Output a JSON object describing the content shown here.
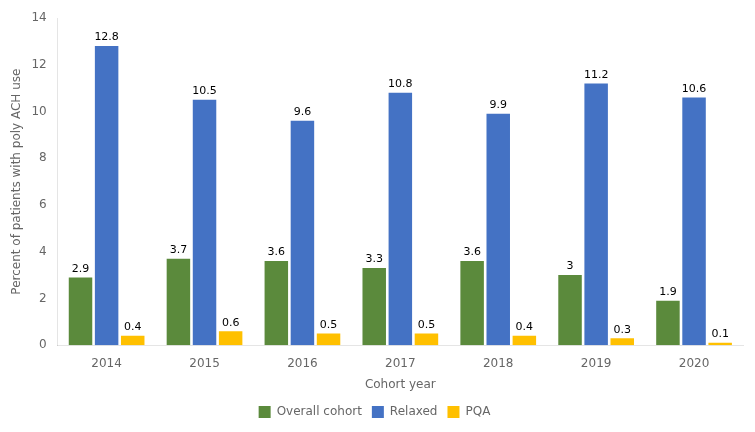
{
  "chart_data": {
    "type": "bar",
    "categories": [
      "2014",
      "2015",
      "2016",
      "2017",
      "2018",
      "2019",
      "2020"
    ],
    "series": [
      {
        "name": "Overall cohort",
        "color": "#5b8a3c",
        "values": [
          2.9,
          3.7,
          3.6,
          3.3,
          3.6,
          3.0,
          1.9
        ]
      },
      {
        "name": "Relaxed",
        "color": "#4472c4",
        "values": [
          12.8,
          10.5,
          9.6,
          10.8,
          9.9,
          11.2,
          10.6
        ]
      },
      {
        "name": "PQA",
        "color": "#ffc000",
        "values": [
          0.4,
          0.6,
          0.5,
          0.5,
          0.4,
          0.3,
          0.1
        ]
      }
    ],
    "xlabel": "Cohort year",
    "ylabel": "Percent of patients with poly ACH use",
    "ylim": [
      0,
      14
    ],
    "yticks": [
      0,
      2,
      4,
      6,
      8,
      10,
      12,
      14
    ],
    "grid": false,
    "legend": "bottom",
    "data_labels": true
  }
}
